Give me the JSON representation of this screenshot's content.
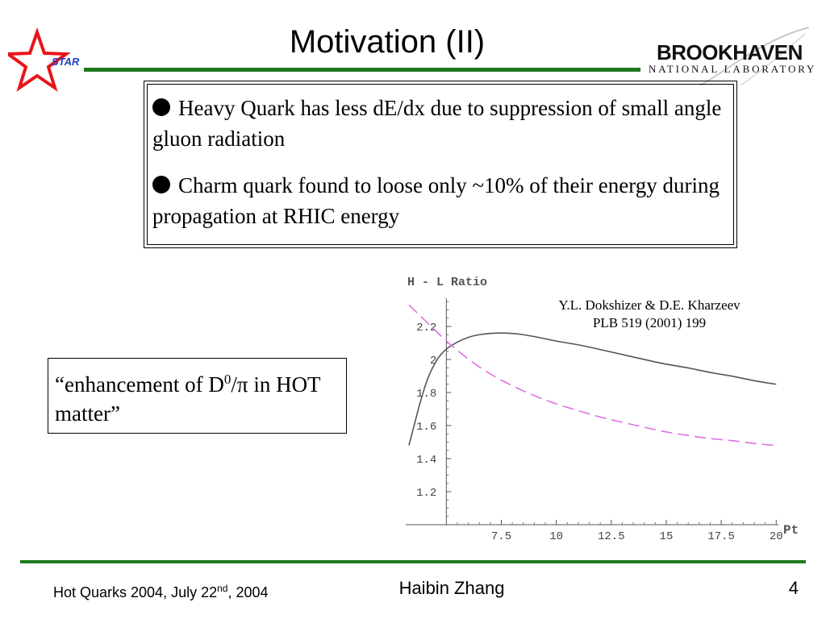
{
  "slide": {
    "title": "Motivation (II)"
  },
  "logos": {
    "star_text": "STAR",
    "bnl_main": "BROOKHAVEN",
    "bnl_sub": "NATIONAL LABORATORY",
    "green": "#1f7a1f",
    "star_red": "#e8141b",
    "star_blue": "#1f3fbf"
  },
  "bullets": [
    {
      "text": "Heavy Quark has less dE/dx  due to suppression of small angle gluon radiation"
    },
    {
      "text": "Charm quark found to loose only ~10% of their energy during propagation at RHIC energy"
    }
  ],
  "enhancement": {
    "open_quote": "“enhancement of D",
    "superscript": "0",
    "slash": "/",
    "pi": "π",
    "rest": " in HOT matter”"
  },
  "citation": {
    "line1": "Y.L. Dokshizer & D.E. Kharzeev",
    "line2": "PLB 519 (2001) 199"
  },
  "chart_data": {
    "type": "line",
    "ylabel": "H - L Ratio",
    "xlabel": "Pt",
    "x_ticks": [
      "7.5",
      "10",
      "12.5",
      "15",
      "17.5",
      "20"
    ],
    "y_ticks": [
      "1.2",
      "1.4",
      "1.6",
      "1.8",
      "2",
      "2.2"
    ],
    "xlim": [
      3.3,
      20.1
    ],
    "ylim": [
      1.0,
      2.4
    ],
    "grid": false,
    "series": [
      {
        "style": "solid",
        "color": "#555555",
        "x": [
          3.3,
          4.0,
          4.5,
          5.0,
          6.0,
          7.0,
          8.0,
          9.0,
          10.0,
          11.0,
          12.0,
          13.0,
          14.0,
          15.0,
          16.0,
          17.0,
          18.0,
          19.0,
          20.0
        ],
        "y": [
          1.48,
          1.84,
          1.99,
          2.07,
          2.14,
          2.16,
          2.16,
          2.14,
          2.11,
          2.09,
          2.06,
          2.03,
          2.0,
          1.97,
          1.95,
          1.92,
          1.9,
          1.87,
          1.85
        ]
      },
      {
        "style": "dashed",
        "color": "#e070e0",
        "x": [
          3.3,
          4.0,
          5.0,
          6.0,
          7.0,
          8.0,
          9.0,
          10.0,
          11.0,
          12.0,
          13.0,
          14.0,
          15.0,
          16.0,
          17.0,
          18.0,
          19.0,
          20.0
        ],
        "y": [
          2.33,
          2.24,
          2.11,
          2.0,
          1.91,
          1.84,
          1.78,
          1.73,
          1.69,
          1.65,
          1.62,
          1.59,
          1.56,
          1.54,
          1.52,
          1.51,
          1.49,
          1.48
        ]
      }
    ]
  },
  "footer": {
    "left_main": "Hot Quarks 2004, July 22",
    "left_sup": "nd",
    "left_end": ", 2004",
    "center": "Haibin Zhang",
    "page": "4"
  }
}
